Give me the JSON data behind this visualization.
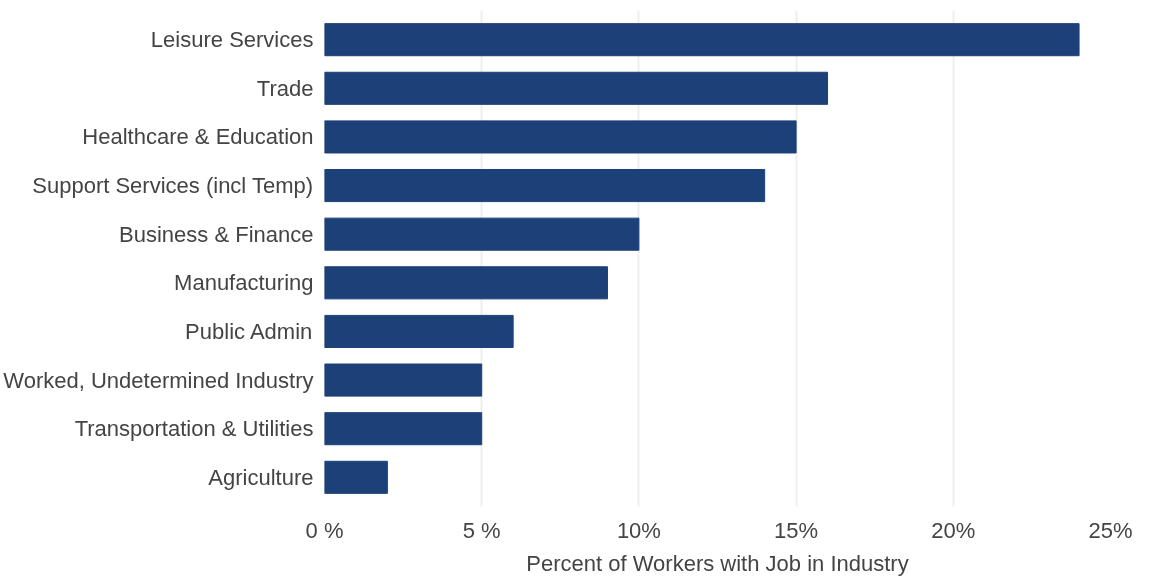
{
  "chart_data": {
    "type": "bar",
    "orientation": "horizontal",
    "xlabel": "Percent of Workers with Job in Industry",
    "categories": [
      "Leisure Services",
      "Trade",
      "Healthcare & Education",
      "Support Services (incl Temp)",
      "Business & Finance",
      "Manufacturing",
      "Public Admin",
      "Worked, Undetermined Industry",
      "Transportation & Utilities",
      "Agriculture"
    ],
    "values": [
      24,
      16,
      15,
      14,
      10,
      9,
      6,
      5,
      5,
      2
    ],
    "color": "#1c4178",
    "xlim": [
      0,
      25
    ],
    "xticks": [
      {
        "value": 0,
        "label": "0 %"
      },
      {
        "value": 5,
        "label": "5 %"
      },
      {
        "value": 10,
        "label": "10%"
      },
      {
        "value": 15,
        "label": "15%"
      },
      {
        "value": 20,
        "label": "20%"
      },
      {
        "value": 25,
        "label": "25%"
      }
    ],
    "grid": "x"
  }
}
